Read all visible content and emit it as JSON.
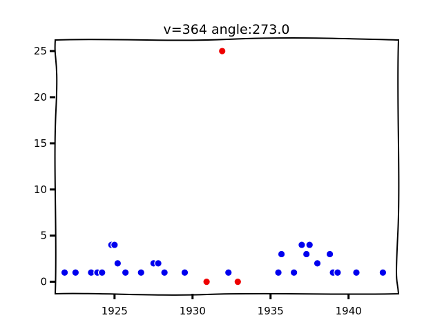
{
  "chart_data": {
    "type": "scatter",
    "title": "v=364 angle:273.0",
    "xlabel": "",
    "ylabel": "",
    "xlim": [
      1921.2,
      1943.2
    ],
    "ylim": [
      -1.3,
      26.2
    ],
    "grid": false,
    "x_ticks": [
      1925,
      1930,
      1935,
      1940
    ],
    "y_ticks": [
      0,
      5,
      10,
      15,
      20,
      25
    ],
    "colors": {
      "primary": "#0000ee",
      "highlight": "#ee0000"
    },
    "series": [
      {
        "color": "#0000ee",
        "points": [
          {
            "x": 1921.8,
            "y": 1
          },
          {
            "x": 1922.5,
            "y": 1
          },
          {
            "x": 1923.5,
            "y": 1
          },
          {
            "x": 1923.9,
            "y": 1
          },
          {
            "x": 1924.2,
            "y": 1
          },
          {
            "x": 1924.8,
            "y": 4
          },
          {
            "x": 1925.0,
            "y": 4
          },
          {
            "x": 1925.2,
            "y": 2
          },
          {
            "x": 1925.7,
            "y": 1
          },
          {
            "x": 1926.7,
            "y": 1
          },
          {
            "x": 1927.5,
            "y": 2
          },
          {
            "x": 1927.8,
            "y": 2
          },
          {
            "x": 1928.2,
            "y": 1
          },
          {
            "x": 1929.5,
            "y": 1
          },
          {
            "x": 1932.3,
            "y": 1
          },
          {
            "x": 1935.5,
            "y": 1
          },
          {
            "x": 1935.7,
            "y": 3
          },
          {
            "x": 1936.5,
            "y": 1
          },
          {
            "x": 1937.0,
            "y": 4
          },
          {
            "x": 1937.3,
            "y": 3
          },
          {
            "x": 1937.5,
            "y": 4
          },
          {
            "x": 1938.0,
            "y": 2
          },
          {
            "x": 1938.8,
            "y": 3
          },
          {
            "x": 1939.0,
            "y": 1
          },
          {
            "x": 1939.3,
            "y": 1
          },
          {
            "x": 1940.5,
            "y": 1
          },
          {
            "x": 1942.2,
            "y": 1
          }
        ]
      },
      {
        "color": "#ee0000",
        "points": [
          {
            "x": 1930.9,
            "y": 0
          },
          {
            "x": 1931.9,
            "y": 25
          },
          {
            "x": 1932.9,
            "y": 0
          }
        ]
      }
    ]
  }
}
